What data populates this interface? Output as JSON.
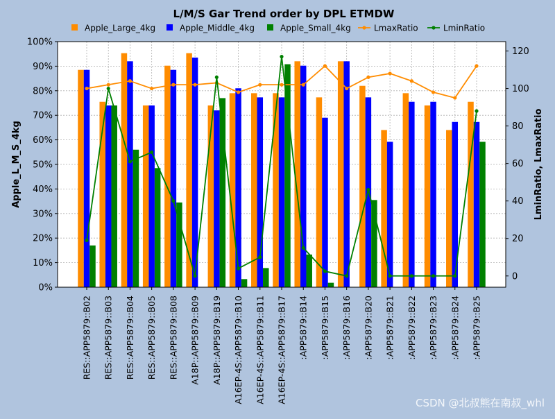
{
  "chart_data": {
    "type": "bar",
    "title": "L/M/S Gar Trend order by DPL ETMDW",
    "xlabel": "",
    "ylabel": "Apple_L_M_S_4kg",
    "y2label": "LminRatio, LmaxRatio",
    "ylim": [
      0,
      100
    ],
    "y2lim": [
      -6,
      125
    ],
    "yticks": [
      "0%",
      "10%",
      "20%",
      "30%",
      "40%",
      "50%",
      "60%",
      "70%",
      "80%",
      "90%",
      "100%"
    ],
    "y2ticks": [
      0,
      20,
      40,
      60,
      80,
      100,
      120
    ],
    "grid": true,
    "legend": "top",
    "categories": [
      "RES::APP5879::B02",
      "RES::APP5879::B03",
      "RES::APP5879::B04",
      "RES::APP5879::B05",
      "RES::APP5879::B08",
      "A18P::APP5879::B09",
      "A18P::APP5879::B19",
      "A16EP-4S::APP5879::B10",
      "A16EP-4S::APP5879::B11",
      "A16EP-4S::APP5879::B17",
      ":APP5879::B14",
      ":APP5879::B15",
      ":APP5879::B16",
      ":APP5879::B20",
      ":APP5879::B21",
      ":APP5879::B22",
      ":APP5879::B23",
      ":APP5879::B24",
      ":APP5879::B25"
    ],
    "series": [
      {
        "name": "Apple_Large_4kg",
        "kind": "bar",
        "axis": "left",
        "color": "#ff8c00",
        "values": [
          88.5,
          75.5,
          95.3,
          74,
          90.2,
          95.3,
          74,
          79,
          79,
          79,
          92,
          77.3,
          92,
          82,
          64,
          79,
          74,
          64,
          75.5
        ]
      },
      {
        "name": "Apple_Middle_4kg",
        "kind": "bar",
        "axis": "left",
        "color": "#0000ff",
        "values": [
          88.5,
          74,
          92,
          74,
          88.5,
          93.5,
          72,
          81,
          77.3,
          77.3,
          90.2,
          69,
          92,
          77.3,
          59.2,
          75.5,
          75.5,
          67.3,
          67.3
        ]
      },
      {
        "name": "Apple_Small_4kg",
        "kind": "bar",
        "axis": "left",
        "color": "#008000",
        "values": [
          17,
          74,
          56,
          48.5,
          34.5,
          0,
          77,
          3.3,
          7.8,
          90.8,
          13.3,
          1.8,
          0,
          35.5,
          0,
          0,
          0,
          0,
          59.2
        ]
      },
      {
        "name": "LmaxRatio",
        "kind": "line",
        "axis": "right",
        "color": "#ff8c00",
        "values": [
          100,
          102,
          104,
          100,
          102,
          102,
          103,
          98,
          102,
          102,
          102,
          112,
          100,
          106,
          108,
          104,
          98,
          95,
          112
        ]
      },
      {
        "name": "LminRatio",
        "kind": "line",
        "axis": "right",
        "color": "#008000",
        "values": [
          19,
          100,
          61,
          66,
          40,
          0,
          106,
          4,
          10,
          117,
          15,
          2.5,
          0,
          46,
          0,
          0,
          0,
          0,
          88
        ]
      }
    ]
  },
  "watermark": "CSDN @北叔熊在南叔_whl"
}
